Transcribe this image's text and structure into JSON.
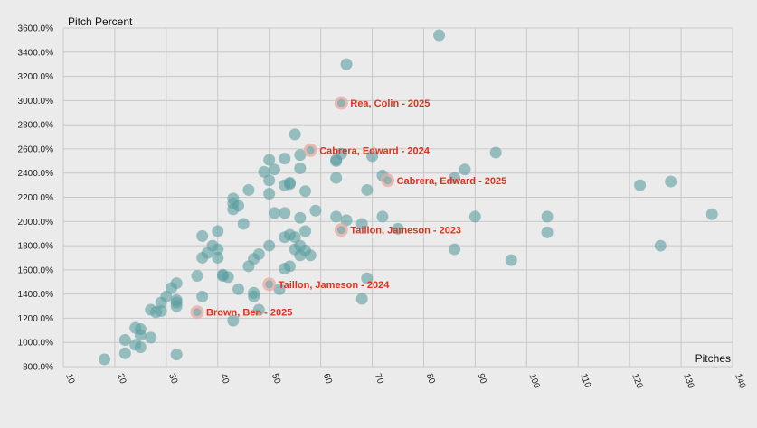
{
  "chart_data": {
    "type": "scatter",
    "xlabel": "Pitches",
    "ylabel": "Pitch Percent",
    "xlim": [
      10,
      140
    ],
    "ylim": [
      800,
      3600
    ],
    "x_ticks": [
      10,
      20,
      30,
      40,
      50,
      60,
      70,
      80,
      90,
      100,
      110,
      120,
      130,
      140
    ],
    "y_ticks": [
      800,
      1000,
      1200,
      1400,
      1600,
      1800,
      2000,
      2200,
      2400,
      2600,
      2800,
      3000,
      3200,
      3400,
      3600
    ],
    "y_tick_suffix": ".0%",
    "grid": true,
    "colors": {
      "point": "#5b9ea0",
      "highlight": "#e8a9a1",
      "annotation": "#e0301e",
      "background": "#ebebeb"
    },
    "points": [
      [
        18,
        860
      ],
      [
        22,
        1020
      ],
      [
        22,
        910
      ],
      [
        24,
        1120
      ],
      [
        24,
        980
      ],
      [
        25,
        1110
      ],
      [
        25,
        1060
      ],
      [
        25,
        960
      ],
      [
        27,
        1040
      ],
      [
        27,
        1270
      ],
      [
        28,
        1250
      ],
      [
        29,
        1330
      ],
      [
        29,
        1260
      ],
      [
        30,
        1380
      ],
      [
        31,
        1450
      ],
      [
        32,
        1330
      ],
      [
        32,
        1350
      ],
      [
        32,
        1300
      ],
      [
        32,
        1490
      ],
      [
        32,
        900
      ],
      [
        36,
        1550
      ],
      [
        37,
        1380
      ],
      [
        37,
        1880
      ],
      [
        37,
        1700
      ],
      [
        38,
        1740
      ],
      [
        39,
        1800
      ],
      [
        40,
        1920
      ],
      [
        40,
        1770
      ],
      [
        40,
        1700
      ],
      [
        41,
        1560
      ],
      [
        41,
        1550
      ],
      [
        42,
        1540
      ],
      [
        43,
        2190
      ],
      [
        43,
        2150
      ],
      [
        43,
        2100
      ],
      [
        43,
        1180
      ],
      [
        44,
        2130
      ],
      [
        44,
        1440
      ],
      [
        45,
        1980
      ],
      [
        46,
        2260
      ],
      [
        46,
        1630
      ],
      [
        47,
        1690
      ],
      [
        47,
        1410
      ],
      [
        47,
        1380
      ],
      [
        48,
        1730
      ],
      [
        48,
        1270
      ],
      [
        49,
        2410
      ],
      [
        50,
        2510
      ],
      [
        50,
        2340
      ],
      [
        50,
        2230
      ],
      [
        50,
        1800
      ],
      [
        51,
        2070
      ],
      [
        51,
        2430
      ],
      [
        52,
        1440
      ],
      [
        53,
        2520
      ],
      [
        53,
        2300
      ],
      [
        53,
        2070
      ],
      [
        53,
        1870
      ],
      [
        53,
        1610
      ],
      [
        54,
        2320
      ],
      [
        54,
        2310
      ],
      [
        54,
        1890
      ],
      [
        54,
        1630
      ],
      [
        55,
        2720
      ],
      [
        55,
        1870
      ],
      [
        55,
        1770
      ],
      [
        56,
        2550
      ],
      [
        56,
        2440
      ],
      [
        56,
        2030
      ],
      [
        56,
        1800
      ],
      [
        56,
        1720
      ],
      [
        57,
        2250
      ],
      [
        57,
        1920
      ],
      [
        57,
        1760
      ],
      [
        58,
        1720
      ],
      [
        59,
        2090
      ],
      [
        63,
        2510
      ],
      [
        63,
        2500
      ],
      [
        63,
        2360
      ],
      [
        63,
        2040
      ],
      [
        64,
        2560
      ],
      [
        65,
        3300
      ],
      [
        65,
        2010
      ],
      [
        68,
        1360
      ],
      [
        68,
        1980
      ],
      [
        69,
        1530
      ],
      [
        69,
        2260
      ],
      [
        70,
        2540
      ],
      [
        72,
        2380
      ],
      [
        72,
        2040
      ],
      [
        75,
        1940
      ],
      [
        83,
        3540
      ],
      [
        86,
        1770
      ],
      [
        86,
        2360
      ],
      [
        88,
        2430
      ],
      [
        90,
        2040
      ],
      [
        94,
        2570
      ],
      [
        97,
        1680
      ],
      [
        104,
        2040
      ],
      [
        104,
        1910
      ],
      [
        122,
        2300
      ],
      [
        126,
        1800
      ],
      [
        128,
        2330
      ],
      [
        136,
        2060
      ]
    ],
    "highlights": [
      {
        "label": "Rea, Colin - 2025",
        "x": 64,
        "y": 2980
      },
      {
        "label": "Cabrera, Edward - 2024",
        "x": 58,
        "y": 2590
      },
      {
        "label": "Cabrera, Edward - 2025",
        "x": 73,
        "y": 2340
      },
      {
        "label": "Taillon, Jameson - 2023",
        "x": 64,
        "y": 1930
      },
      {
        "label": "Taillon, Jameson - 2024",
        "x": 50,
        "y": 1480
      },
      {
        "label": "Brown, Ben - 2025",
        "x": 36,
        "y": 1250
      }
    ]
  }
}
